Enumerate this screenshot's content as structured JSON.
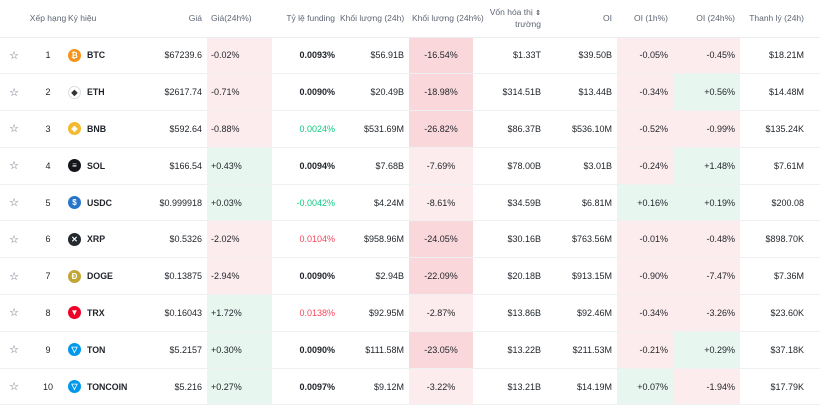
{
  "headers": {
    "rank": "Xếp hạng",
    "symbol": "Ký hiệu",
    "price": "Giá",
    "change": "Giá(24h%)",
    "funding": "Tỷ lệ funding",
    "volume": "Khối lượng (24h)",
    "volume_change": "Khối lượng (24h%)",
    "mcap_line1": "Vốn hóa thị",
    "mcap_line2": "trường",
    "oi": "OI",
    "oi_1h": "OI (1h%)",
    "oi_24h": "OI (24h%)",
    "liq": "Thanh lý (24h)"
  },
  "colors": {
    "positive": "#0ecb81",
    "negative": "#f6465d"
  },
  "rows": [
    {
      "rank": "1",
      "symbol": "BTC",
      "icon": "btc-icon",
      "icon_color": "#f7931a",
      "icon_glyph": "₿",
      "price": "$67239.6",
      "change": "-0.02%",
      "change_bg": "neg-l",
      "funding": "0.0093%",
      "funding_cls": "bold",
      "volume": "$56.91B",
      "vol_change": "-16.54%",
      "vol_change_bg": "neg-d",
      "mcap": "$1.33T",
      "oi": "$39.50B",
      "oi_1h": "-0.05%",
      "oi_1h_bg": "neg-l",
      "oi_24h": "-0.45%",
      "oi_24h_bg": "neg-l",
      "liq": "$18.21M"
    },
    {
      "rank": "2",
      "symbol": "ETH",
      "icon": "eth-icon",
      "icon_color": "#ffffff",
      "icon_glyph": "◆",
      "price": "$2617.74",
      "change": "-0.71%",
      "change_bg": "neg-l",
      "funding": "0.0090%",
      "funding_cls": "bold",
      "volume": "$20.49B",
      "vol_change": "-18.98%",
      "vol_change_bg": "neg-d",
      "mcap": "$314.51B",
      "oi": "$13.44B",
      "oi_1h": "-0.34%",
      "oi_1h_bg": "neg-l",
      "oi_24h": "+0.56%",
      "oi_24h_bg": "pos-l",
      "liq": "$14.48M"
    },
    {
      "rank": "3",
      "symbol": "BNB",
      "icon": "bnb-icon",
      "icon_color": "#f3ba2f",
      "icon_glyph": "◈",
      "price": "$592.64",
      "change": "-0.88%",
      "change_bg": "neg-l",
      "funding": "0.0024%",
      "funding_cls": "green",
      "volume": "$531.69M",
      "vol_change": "-26.82%",
      "vol_change_bg": "neg-d",
      "mcap": "$86.37B",
      "oi": "$536.10M",
      "oi_1h": "-0.52%",
      "oi_1h_bg": "neg-l",
      "oi_24h": "-0.99%",
      "oi_24h_bg": "neg-l",
      "liq": "$135.24K"
    },
    {
      "rank": "4",
      "symbol": "SOL",
      "icon": "sol-icon",
      "icon_color": "#14161a",
      "icon_glyph": "≡",
      "price": "$166.54",
      "change": "+0.43%",
      "change_bg": "pos-l",
      "funding": "0.0094%",
      "funding_cls": "bold",
      "volume": "$7.68B",
      "vol_change": "-7.69%",
      "vol_change_bg": "neg-l",
      "mcap": "$78.00B",
      "oi": "$3.01B",
      "oi_1h": "-0.24%",
      "oi_1h_bg": "neg-l",
      "oi_24h": "+1.48%",
      "oi_24h_bg": "pos-l",
      "liq": "$7.61M"
    },
    {
      "rank": "5",
      "symbol": "USDC",
      "icon": "usdc-icon",
      "icon_color": "#2775ca",
      "icon_glyph": "$",
      "price": "$0.999918",
      "change": "+0.03%",
      "change_bg": "pos-l",
      "funding": "-0.0042%",
      "funding_cls": "green",
      "volume": "$4.24M",
      "vol_change": "-8.61%",
      "vol_change_bg": "neg-l",
      "mcap": "$34.59B",
      "oi": "$6.81M",
      "oi_1h": "+0.16%",
      "oi_1h_bg": "pos-l",
      "oi_24h": "+0.19%",
      "oi_24h_bg": "pos-l",
      "liq": "$200.08"
    },
    {
      "rank": "6",
      "symbol": "XRP",
      "icon": "xrp-icon",
      "icon_color": "#23292f",
      "icon_glyph": "✕",
      "price": "$0.5326",
      "change": "-2.02%",
      "change_bg": "neg-l",
      "funding": "0.0104%",
      "funding_cls": "red",
      "volume": "$958.96M",
      "vol_change": "-24.05%",
      "vol_change_bg": "neg-d",
      "mcap": "$30.16B",
      "oi": "$763.56M",
      "oi_1h": "-0.01%",
      "oi_1h_bg": "neg-l",
      "oi_24h": "-0.48%",
      "oi_24h_bg": "neg-l",
      "liq": "$898.70K"
    },
    {
      "rank": "7",
      "symbol": "DOGE",
      "icon": "doge-icon",
      "icon_color": "#c2a633",
      "icon_glyph": "Ð",
      "price": "$0.13875",
      "change": "-2.94%",
      "change_bg": "neg-l",
      "funding": "0.0090%",
      "funding_cls": "bold",
      "volume": "$2.94B",
      "vol_change": "-22.09%",
      "vol_change_bg": "neg-d",
      "mcap": "$20.18B",
      "oi": "$913.15M",
      "oi_1h": "-0.90%",
      "oi_1h_bg": "neg-l",
      "oi_24h": "-7.47%",
      "oi_24h_bg": "neg-l",
      "liq": "$7.36M"
    },
    {
      "rank": "8",
      "symbol": "TRX",
      "icon": "trx-icon",
      "icon_color": "#ef0027",
      "icon_glyph": "▼",
      "price": "$0.16043",
      "change": "+1.72%",
      "change_bg": "pos-l",
      "funding": "0.0138%",
      "funding_cls": "red",
      "volume": "$92.95M",
      "vol_change": "-2.87%",
      "vol_change_bg": "neg-l",
      "mcap": "$13.86B",
      "oi": "$92.46M",
      "oi_1h": "-0.34%",
      "oi_1h_bg": "neg-l",
      "oi_24h": "-3.26%",
      "oi_24h_bg": "neg-l",
      "liq": "$23.60K"
    },
    {
      "rank": "9",
      "symbol": "TON",
      "icon": "ton-icon",
      "icon_color": "#0098ea",
      "icon_glyph": "▽",
      "price": "$5.2157",
      "change": "+0.30%",
      "change_bg": "pos-l",
      "funding": "0.0090%",
      "funding_cls": "bold",
      "volume": "$111.58M",
      "vol_change": "-23.05%",
      "vol_change_bg": "neg-d",
      "mcap": "$13.22B",
      "oi": "$211.53M",
      "oi_1h": "-0.21%",
      "oi_1h_bg": "neg-l",
      "oi_24h": "+0.29%",
      "oi_24h_bg": "pos-l",
      "liq": "$37.18K"
    },
    {
      "rank": "10",
      "symbol": "TONCOIN",
      "icon": "toncoin-icon",
      "icon_color": "#0098ea",
      "icon_glyph": "▽",
      "price": "$5.216",
      "change": "+0.27%",
      "change_bg": "pos-l",
      "funding": "0.0097%",
      "funding_cls": "bold",
      "volume": "$9.12M",
      "vol_change": "-3.22%",
      "vol_change_bg": "neg-l",
      "mcap": "$13.21B",
      "oi": "$14.19M",
      "oi_1h": "+0.07%",
      "oi_1h_bg": "pos-l",
      "oi_24h": "-1.94%",
      "oi_24h_bg": "neg-l",
      "liq": "$17.79K"
    }
  ]
}
